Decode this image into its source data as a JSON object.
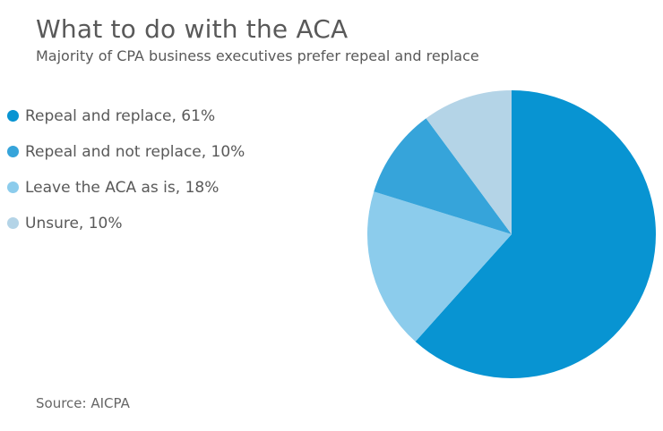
{
  "chart": {
    "title": "What to do with the ACA",
    "subtitle": "Majority of CPA business executives prefer repeal and replace",
    "source": "Source: AICPA"
  },
  "legend": {
    "position": "left",
    "items": [
      {
        "label": "Repeal and replace, 61%",
        "color": "#0894d2"
      },
      {
        "label": "Repeal and not replace, 10%",
        "color": "#36a4da"
      },
      {
        "label": "Leave the ACA as is, 18%",
        "color": "#8cccec"
      },
      {
        "label": "Unsure, 10%",
        "color": "#b4d4e7"
      }
    ]
  },
  "chart_data": {
    "type": "pie",
    "title": "What to do with the ACA",
    "subtitle": "Majority of CPA business executives prefer repeal and replace",
    "source": "Source: AICPA",
    "legend_position": "left",
    "start_angle_deg": 0,
    "direction": "clockwise",
    "slices": [
      {
        "label": "Repeal and replace",
        "value_pct": 61,
        "color": "#0894d2"
      },
      {
        "label": "Repeal and not replace",
        "value_pct": 10,
        "color": "#36a4da"
      },
      {
        "label": "Leave the ACA as is",
        "value_pct": 18,
        "color": "#8cccec"
      },
      {
        "label": "Unsure",
        "value_pct": 10,
        "color": "#b4d4e7"
      }
    ],
    "pie_draw_order": [
      0,
      2,
      1,
      3
    ],
    "slice_borders": "none"
  },
  "colors": {
    "background": "#ffffff",
    "title_text": "#595959",
    "subtitle_text": "#595959",
    "legend_text": "#595959",
    "source_text": "#666666"
  }
}
